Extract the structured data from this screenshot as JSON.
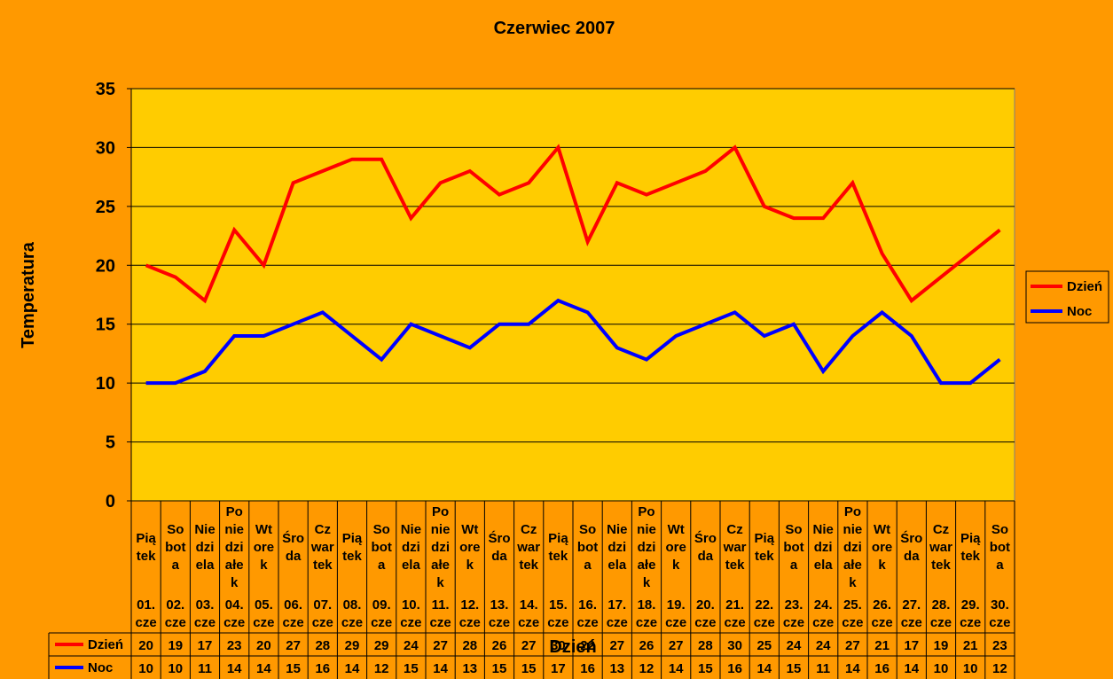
{
  "chart_data": {
    "type": "line",
    "title": "Czerwiec 2007",
    "xlabel": "Dzień",
    "ylabel": "Temperatura",
    "ylim": [
      0,
      35
    ],
    "yticks": [
      0,
      5,
      10,
      15,
      20,
      25,
      30,
      35
    ],
    "grid": true,
    "legend_position": "right",
    "plot_background": "#FFCC00",
    "page_background": "#FF9900",
    "categories": [
      {
        "day": "Pią tek",
        "date": "01. cze"
      },
      {
        "day": "So bot a",
        "date": "02. cze"
      },
      {
        "day": "Nie dzi ela",
        "date": "03. cze"
      },
      {
        "day": "Po nie dzi ałe k",
        "date": "04. cze"
      },
      {
        "day": "Wt ore k",
        "date": "05. cze"
      },
      {
        "day": "Śro da",
        "date": "06. cze"
      },
      {
        "day": "Cz war tek",
        "date": "07. cze"
      },
      {
        "day": "Pią tek",
        "date": "08. cze"
      },
      {
        "day": "So bot a",
        "date": "09. cze"
      },
      {
        "day": "Nie dzi ela",
        "date": "10. cze"
      },
      {
        "day": "Po nie dzi ałe k",
        "date": "11. cze"
      },
      {
        "day": "Wt ore k",
        "date": "12. cze"
      },
      {
        "day": "Śro da",
        "date": "13. cze"
      },
      {
        "day": "Cz war tek",
        "date": "14. cze"
      },
      {
        "day": "Pią tek",
        "date": "15. cze"
      },
      {
        "day": "So bot a",
        "date": "16. cze"
      },
      {
        "day": "Nie dzi ela",
        "date": "17. cze"
      },
      {
        "day": "Po nie dzi ałe k",
        "date": "18. cze"
      },
      {
        "day": "Wt ore k",
        "date": "19. cze"
      },
      {
        "day": "Śro da",
        "date": "20. cze"
      },
      {
        "day": "Cz war tek",
        "date": "21. cze"
      },
      {
        "day": "Pią tek",
        "date": "22. cze"
      },
      {
        "day": "So bot a",
        "date": "23. cze"
      },
      {
        "day": "Nie dzi ela",
        "date": "24. cze"
      },
      {
        "day": "Po nie dzi ałe k",
        "date": "25. cze"
      },
      {
        "day": "Wt ore k",
        "date": "26. cze"
      },
      {
        "day": "Śro da",
        "date": "27. cze"
      },
      {
        "day": "Cz war tek",
        "date": "28. cze"
      },
      {
        "day": "Pią tek",
        "date": "29. cze"
      },
      {
        "day": "So bot a",
        "date": "30. cze"
      }
    ],
    "series": [
      {
        "name": "Dzień",
        "color": "#FF0000",
        "values": [
          20,
          19,
          17,
          23,
          20,
          27,
          28,
          29,
          29,
          24,
          27,
          28,
          26,
          27,
          30,
          22,
          27,
          26,
          27,
          28,
          30,
          25,
          24,
          24,
          27,
          21,
          17,
          19,
          21,
          23
        ]
      },
      {
        "name": "Noc",
        "color": "#0000FF",
        "values": [
          10,
          10,
          11,
          14,
          14,
          15,
          16,
          14,
          12,
          15,
          14,
          13,
          15,
          15,
          17,
          16,
          13,
          12,
          14,
          15,
          16,
          14,
          15,
          11,
          14,
          16,
          14,
          10,
          10,
          12
        ]
      }
    ]
  }
}
